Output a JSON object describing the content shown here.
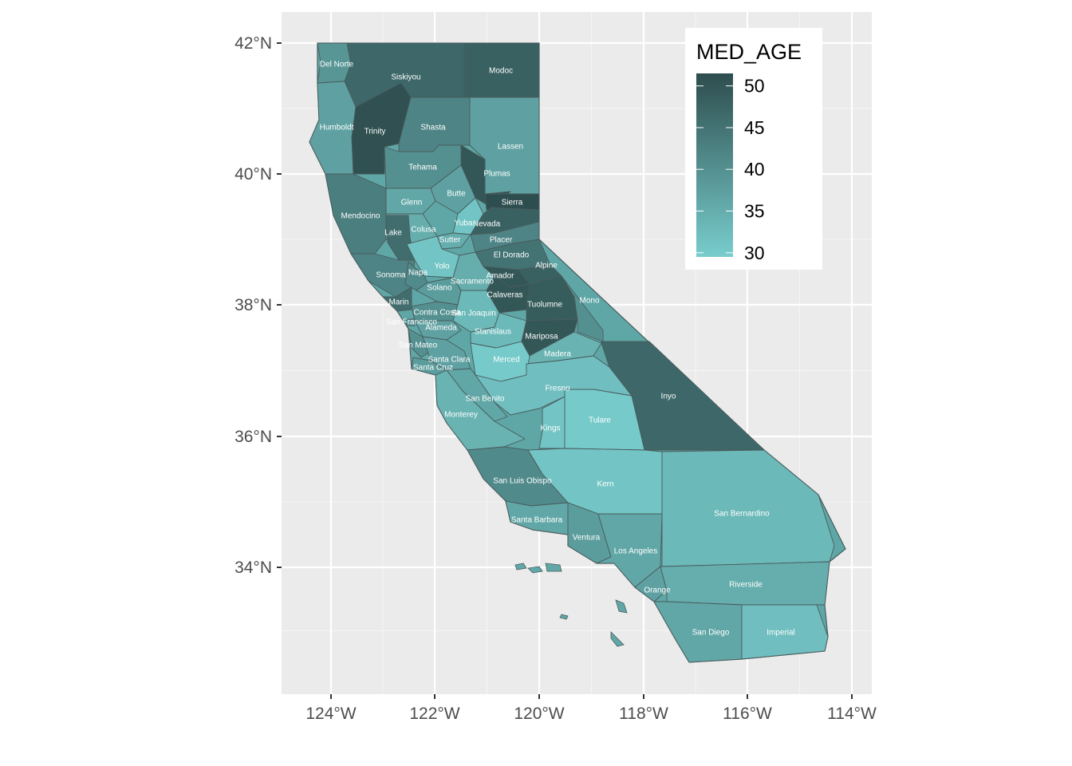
{
  "chart_data": {
    "type": "choropleth",
    "fill_variable": "MED_AGE",
    "legend": {
      "title": "MED_AGE",
      "breaks": [
        50,
        45,
        40,
        35,
        30
      ],
      "color_low": "#78cdcd",
      "color_high": "#2e4d4e",
      "range": [
        29.5,
        51.5
      ]
    },
    "x_ticks": [
      "124°W",
      "122°W",
      "120°W",
      "118°W",
      "116°W",
      "114°W"
    ],
    "y_ticks": [
      "42°N",
      "40°N",
      "38°N",
      "36°N",
      "34°N"
    ],
    "grid": true,
    "panel_background": "#ebebeb",
    "counties": [
      {
        "name": "Del Norte",
        "med_age": 39
      },
      {
        "name": "Siskiyou",
        "med_age": 47
      },
      {
        "name": "Modoc",
        "med_age": 48
      },
      {
        "name": "Humboldt",
        "med_age": 37
      },
      {
        "name": "Trinity",
        "med_age": 51
      },
      {
        "name": "Shasta",
        "med_age": 42
      },
      {
        "name": "Lassen",
        "med_age": 37
      },
      {
        "name": "Tehama",
        "med_age": 40
      },
      {
        "name": "Plumas",
        "med_age": 50
      },
      {
        "name": "Glenn",
        "med_age": 36
      },
      {
        "name": "Butte",
        "med_age": 37
      },
      {
        "name": "Sierra",
        "med_age": 52
      },
      {
        "name": "Mendocino",
        "med_age": 43
      },
      {
        "name": "Colusa",
        "med_age": 35
      },
      {
        "name": "Yuba",
        "med_age": 31
      },
      {
        "name": "Nevada",
        "med_age": 48
      },
      {
        "name": "Lake",
        "med_age": 46
      },
      {
        "name": "Sutter",
        "med_age": 35
      },
      {
        "name": "Placer",
        "med_age": 42
      },
      {
        "name": "El Dorado",
        "med_age": 45
      },
      {
        "name": "Yolo",
        "med_age": 31
      },
      {
        "name": "Alpine",
        "med_age": 48
      },
      {
        "name": "Sonoma",
        "med_age": 42
      },
      {
        "name": "Napa",
        "med_age": 41
      },
      {
        "name": "Sacramento",
        "med_age": 35
      },
      {
        "name": "Amador",
        "med_age": 50
      },
      {
        "name": "Solano",
        "med_age": 38
      },
      {
        "name": "Calaveras",
        "med_age": 50
      },
      {
        "name": "Tuolumne",
        "med_age": 49
      },
      {
        "name": "Mono",
        "med_age": 40
      },
      {
        "name": "Marin",
        "med_age": 46
      },
      {
        "name": "Contra Costa",
        "med_age": 40
      },
      {
        "name": "San Joaquin",
        "med_age": 33
      },
      {
        "name": "San Francisco",
        "med_age": 38
      },
      {
        "name": "Alameda",
        "med_age": 37
      },
      {
        "name": "Stanislaus",
        "med_age": 33
      },
      {
        "name": "Mariposa",
        "med_age": 50
      },
      {
        "name": "San Mateo",
        "med_age": 40
      },
      {
        "name": "Madera",
        "med_age": 34
      },
      {
        "name": "Merced",
        "med_age": 30
      },
      {
        "name": "Santa Clara",
        "med_age": 37
      },
      {
        "name": "Santa Cruz",
        "med_age": 38
      },
      {
        "name": "Inyo",
        "med_age": 47
      },
      {
        "name": "Fresno",
        "med_age": 32
      },
      {
        "name": "San Benito",
        "med_age": 36
      },
      {
        "name": "Monterey",
        "med_age": 34
      },
      {
        "name": "Kings",
        "med_age": 31
      },
      {
        "name": "Tulare",
        "med_age": 30
      },
      {
        "name": "San Luis Obispo",
        "med_age": 41
      },
      {
        "name": "Kern",
        "med_age": 31
      },
      {
        "name": "San Bernardino",
        "med_age": 33
      },
      {
        "name": "Santa Barbara",
        "med_age": 36
      },
      {
        "name": "Ventura",
        "med_age": 38
      },
      {
        "name": "Los Angeles",
        "med_age": 36
      },
      {
        "name": "Orange",
        "med_age": 37
      },
      {
        "name": "Riverside",
        "med_age": 35
      },
      {
        "name": "San Diego",
        "med_age": 36
      },
      {
        "name": "Imperial",
        "med_age": 32
      }
    ]
  }
}
